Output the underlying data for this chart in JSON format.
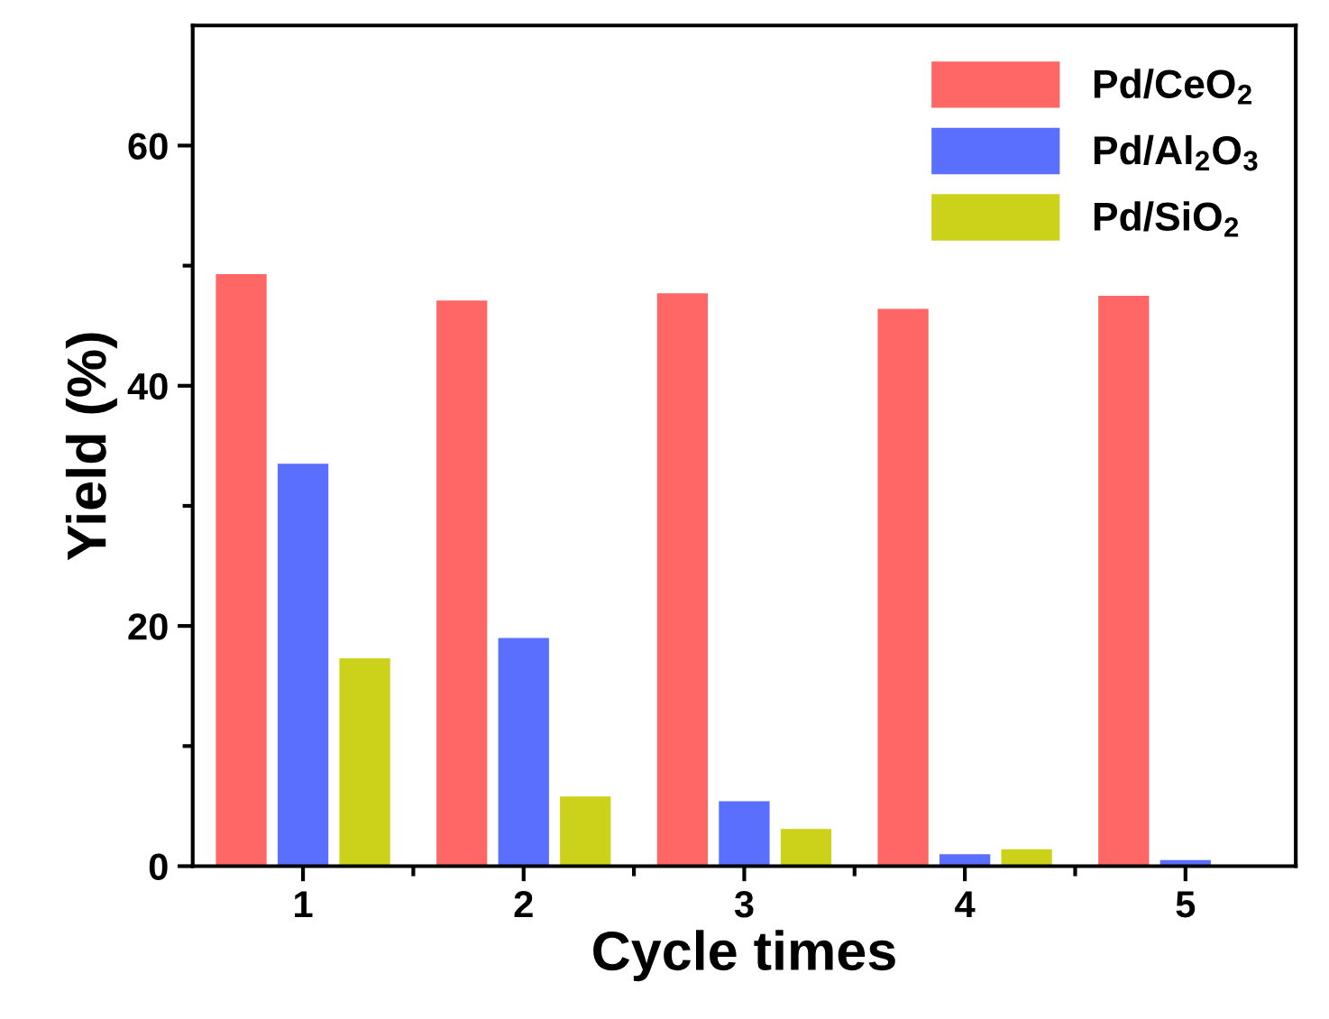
{
  "chart_data": {
    "type": "bar",
    "xlabel": "Cycle times",
    "ylabel": "Yield (%)",
    "categories": [
      "1",
      "2",
      "3",
      "4",
      "5"
    ],
    "series": [
      {
        "name": "Pd/CeO$_{2}$",
        "color": "#ff6666",
        "values": [
          49.3,
          47.1,
          47.7,
          46.4,
          47.5
        ]
      },
      {
        "name": "Pd/Al$_{2}$O$_{3}$",
        "color": "#5b6fff",
        "values": [
          33.5,
          19.0,
          5.4,
          1.0,
          0.5
        ]
      },
      {
        "name": "Pd/SiO$_{2}$",
        "color": "#ccd119",
        "values": [
          17.3,
          5.8,
          3.1,
          1.4,
          null
        ]
      }
    ],
    "ylim": [
      0,
      70
    ],
    "yticks": [
      0,
      {
        "value": 10,
        "label": null
      },
      20,
      {
        "value": 30,
        "label": null
      },
      40,
      {
        "value": 50,
        "label": null
      },
      60
    ],
    "legend": "top right",
    "grid": false
  }
}
